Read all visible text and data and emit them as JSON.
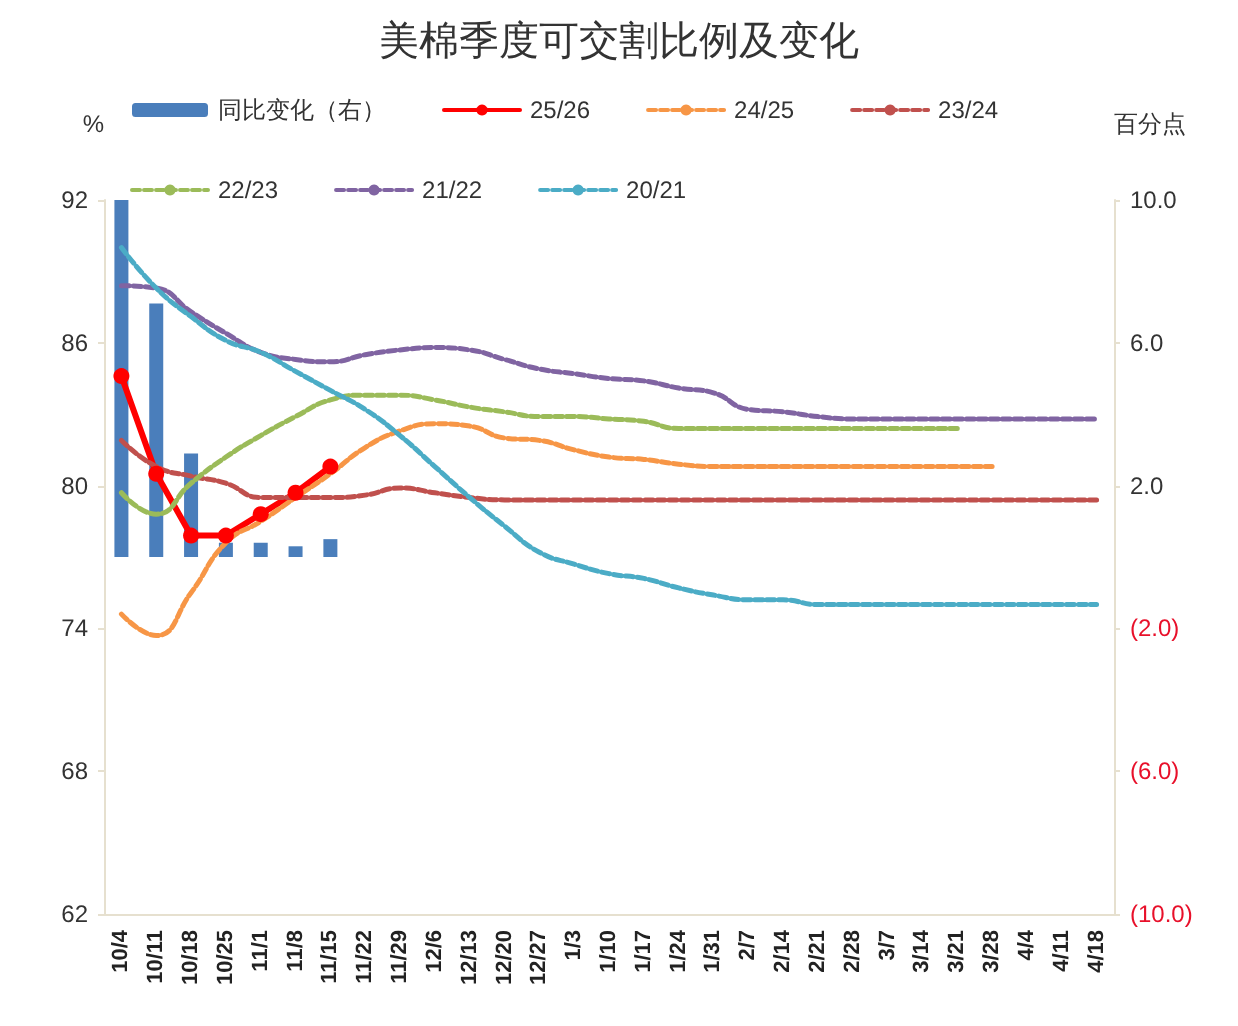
{
  "chart_data": {
    "type": "line",
    "title": "美棉季度可交割比例及变化",
    "ylabel": "%",
    "y2label": "百分点",
    "categories": [
      "10/4",
      "10/11",
      "10/18",
      "10/25",
      "11/1",
      "11/8",
      "11/15",
      "11/22",
      "11/29",
      "12/6",
      "12/13",
      "12/20",
      "12/27",
      "1/3",
      "1/10",
      "1/17",
      "1/24",
      "1/31",
      "2/7",
      "2/14",
      "2/21",
      "2/28",
      "3/7",
      "3/14",
      "3/21",
      "3/28",
      "4/4",
      "4/11",
      "4/18"
    ],
    "series": [
      {
        "name": "同比变化（右）",
        "type": "bar",
        "axis": "y2",
        "color": "#4a7ebb",
        "values": [
          10.0,
          7.1,
          2.9,
          0.4,
          0.4,
          0.3,
          0.5,
          null,
          null,
          null,
          null,
          null,
          null,
          null,
          null,
          null,
          null,
          null,
          null,
          null,
          null,
          null,
          null,
          null,
          null,
          null,
          null,
          null,
          null
        ]
      },
      {
        "name": "25/26",
        "color": "#ff0000",
        "marker": "circle",
        "line_style": "solid",
        "values": [
          84.6,
          80.5,
          77.9,
          77.9,
          78.8,
          79.7,
          80.8,
          null,
          null,
          null,
          null,
          null,
          null,
          null,
          null,
          null,
          null,
          null,
          null,
          null,
          null,
          null,
          null,
          null,
          null,
          null,
          null,
          null,
          null
        ]
      },
      {
        "name": "24/25",
        "color": "#f79646",
        "marker": "none",
        "line_style": "dashed",
        "values": [
          74.6,
          73.7,
          75.5,
          77.6,
          78.5,
          79.5,
          80.5,
          81.6,
          82.3,
          82.6,
          82.5,
          82.0,
          81.9,
          81.5,
          81.2,
          81.1,
          80.9,
          80.8,
          80.8,
          80.8,
          80.8,
          80.8,
          80.8,
          80.8,
          80.8,
          80.8,
          null,
          null,
          null
        ]
      },
      {
        "name": "23/24",
        "color": "#c0504d",
        "marker": "none",
        "line_style": "dashed",
        "values": [
          81.9,
          80.8,
          80.4,
          80.1,
          79.5,
          79.5,
          79.5,
          79.6,
          79.9,
          79.7,
          79.5,
          79.4,
          79.4,
          79.4,
          79.4,
          79.4,
          79.4,
          79.4,
          79.4,
          79.4,
          79.4,
          79.4,
          79.4,
          79.4,
          79.4,
          79.4,
          79.4,
          79.4,
          79.4
        ]
      },
      {
        "name": "22/23",
        "color": "#9bbb59",
        "marker": "none",
        "line_style": "dashed",
        "values": [
          79.7,
          78.8,
          80.1,
          81.2,
          82.1,
          82.9,
          83.6,
          83.8,
          83.8,
          83.6,
          83.3,
          83.1,
          82.9,
          82.9,
          82.8,
          82.7,
          82.4,
          82.4,
          82.4,
          82.4,
          82.4,
          82.4,
          82.4,
          82.4,
          82.4,
          null,
          null,
          null,
          null
        ]
      },
      {
        "name": "21/22",
        "color": "#8064a2",
        "marker": "none",
        "line_style": "dashed",
        "values": [
          88.4,
          88.3,
          87.3,
          86.4,
          85.6,
          85.3,
          85.2,
          85.5,
          85.7,
          85.8,
          85.7,
          85.3,
          84.9,
          84.7,
          84.5,
          84.4,
          84.1,
          83.9,
          83.2,
          83.1,
          82.9,
          82.8,
          82.8,
          82.8,
          82.8,
          82.8,
          82.8,
          82.8,
          82.8
        ]
      },
      {
        "name": "20/21",
        "color": "#4bacc6",
        "marker": "none",
        "line_style": "dashed",
        "values": [
          90.0,
          88.3,
          87.1,
          86.1,
          85.6,
          84.8,
          84.0,
          83.2,
          82.1,
          80.8,
          79.5,
          78.3,
          77.2,
          76.7,
          76.3,
          76.1,
          75.7,
          75.4,
          75.2,
          75.2,
          75.0,
          75.0,
          75.0,
          75.0,
          75.0,
          75.0,
          75.0,
          75.0,
          75.0
        ]
      }
    ],
    "ylim": [
      62,
      92
    ],
    "yticks": [
      62,
      68,
      74,
      80,
      86,
      92
    ],
    "y2lim": [
      -10,
      10
    ],
    "y2ticks": [
      {
        "value": -10,
        "label": "(10.0)"
      },
      {
        "value": -6,
        "label": "(6.0)"
      },
      {
        "value": -2,
        "label": "(2.0)"
      },
      {
        "value": 2,
        "label": "2.0"
      },
      {
        "value": 6,
        "label": "6.0"
      },
      {
        "value": 10,
        "label": "10.0"
      }
    ],
    "grid": false,
    "legend": "top"
  }
}
